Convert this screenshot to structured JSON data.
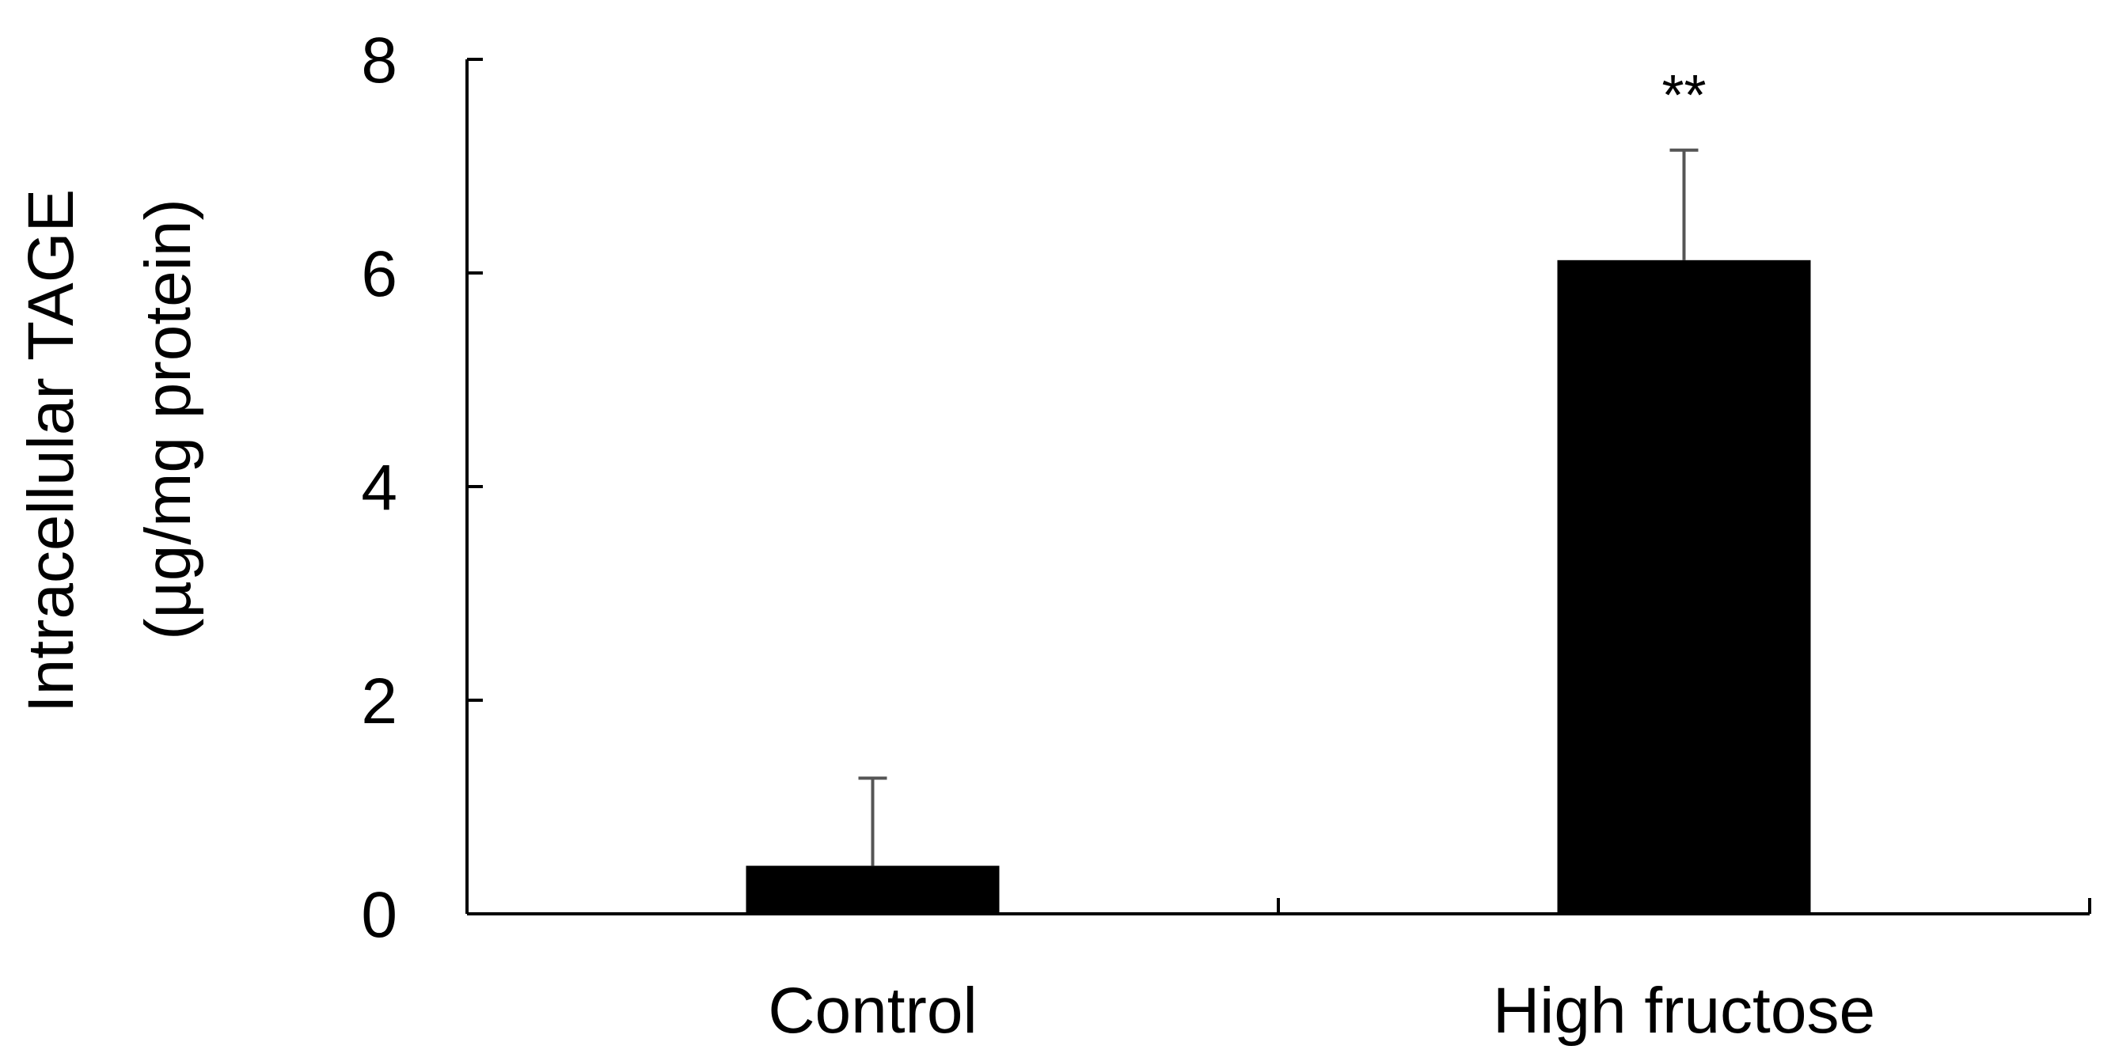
{
  "chart_data": {
    "type": "bar",
    "categories": [
      "Control",
      "High fructose"
    ],
    "values": [
      0.45,
      6.12
    ],
    "error_upper": [
      1.27,
      7.15
    ],
    "annotations": [
      "",
      "**"
    ],
    "ylabel_lines": [
      "Intracellular TAGE",
      "(µg/mg protein)"
    ],
    "xlabel": "",
    "title": "",
    "ylim": [
      0,
      8
    ],
    "yticks": [
      0,
      2,
      4,
      6,
      8
    ],
    "grid": false,
    "legend": "none",
    "bar_color": "#000000",
    "error_color": "#555555"
  }
}
